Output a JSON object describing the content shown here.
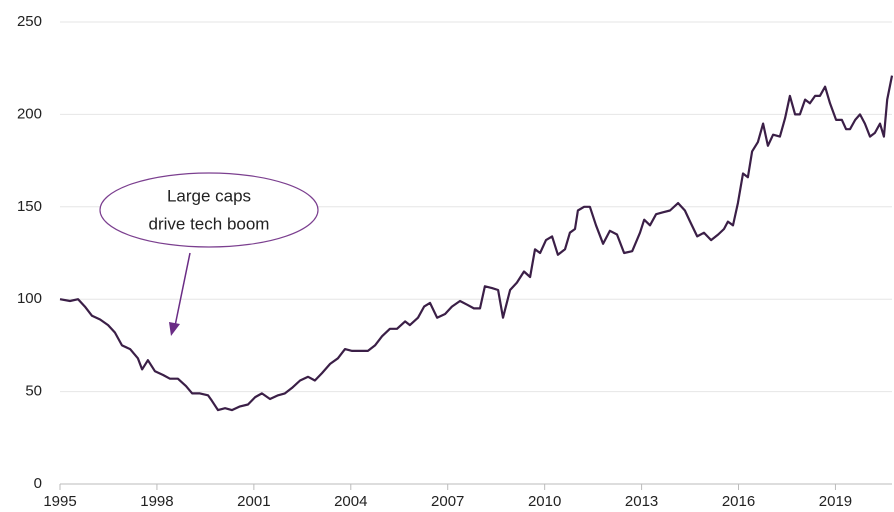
{
  "chart_data": {
    "type": "line",
    "x": [
      1995.0,
      1995.31,
      1995.56,
      1995.77,
      1995.99,
      1996.24,
      1996.49,
      1996.7,
      1996.92,
      1997.17,
      1997.41,
      1997.54,
      1997.72,
      1997.94,
      1998.19,
      1998.4,
      1998.65,
      1998.9,
      1999.09,
      1999.33,
      1999.58,
      1999.7,
      1999.89,
      2000.11,
      2000.32,
      2000.57,
      2000.82,
      2001.04,
      2001.25,
      2001.5,
      2001.75,
      2001.96,
      2002.18,
      2002.43,
      2002.68,
      2002.89,
      2003.11,
      2003.36,
      2003.6,
      2003.82,
      2004.04,
      2004.29,
      2004.53,
      2004.75,
      2004.97,
      2005.21,
      2005.43,
      2005.68,
      2005.83,
      2006.08,
      2006.27,
      2006.45,
      2006.67,
      2006.92,
      2007.13,
      2007.38,
      2007.6,
      2007.81,
      2008.0,
      2008.15,
      2008.37,
      2008.56,
      2008.71,
      2008.93,
      2009.14,
      2009.36,
      2009.55,
      2009.7,
      2009.86,
      2010.04,
      2010.23,
      2010.41,
      2010.63,
      2010.78,
      2010.94,
      2011.03,
      2011.22,
      2011.4,
      2011.59,
      2011.81,
      2012.02,
      2012.24,
      2012.46,
      2012.71,
      2012.95,
      2013.08,
      2013.26,
      2013.45,
      2013.66,
      2013.88,
      2014.13,
      2014.34,
      2014.5,
      2014.72,
      2014.93,
      2015.15,
      2015.37,
      2015.55,
      2015.67,
      2015.83,
      2015.98,
      2016.14,
      2016.29,
      2016.42,
      2016.6,
      2016.76,
      2016.91,
      2017.07,
      2017.28,
      2017.44,
      2017.59,
      2017.75,
      2017.9,
      2018.06,
      2018.21,
      2018.37,
      2018.52,
      2018.68,
      2018.83,
      2019.02,
      2019.2,
      2019.33,
      2019.45,
      2019.61,
      2019.76,
      2019.91,
      2020.07,
      2020.22,
      2020.38,
      2020.5,
      2020.6,
      2020.75
    ],
    "series": [
      {
        "color": "#3b1f47",
        "values": [
          100,
          99,
          100,
          96,
          91,
          89,
          86,
          82,
          75,
          73,
          68,
          62,
          67,
          61,
          59,
          57,
          57,
          53,
          49,
          49,
          48,
          45,
          40,
          41,
          40,
          42,
          43,
          47,
          49,
          46,
          48,
          49,
          52,
          56,
          58,
          56,
          60,
          65,
          68,
          73,
          72,
          72,
          72,
          75,
          80,
          84,
          84,
          88,
          86,
          90,
          96,
          98,
          90,
          92,
          96,
          99,
          97,
          95,
          95,
          107,
          106,
          105,
          90,
          105,
          109,
          115,
          112,
          127,
          125,
          132,
          134,
          124,
          127,
          136,
          138,
          148,
          150,
          150,
          140,
          130,
          137,
          135,
          125,
          126,
          136,
          143,
          140,
          146,
          147,
          148,
          152,
          148,
          142,
          134,
          136,
          132,
          135,
          138,
          142,
          140,
          152,
          168,
          166,
          180,
          185,
          195,
          183,
          189,
          188,
          198,
          210,
          200,
          200,
          208,
          206,
          210,
          210,
          215,
          206,
          197,
          197,
          192,
          192,
          197,
          200,
          195,
          188,
          190,
          195,
          188,
          208,
          221
        ]
      }
    ],
    "xlim": [
      1995,
      2020.75
    ],
    "xticks": [
      1995,
      1998,
      2001,
      2004,
      2007,
      2010,
      2013,
      2016,
      2019
    ],
    "ylim": [
      0,
      250
    ],
    "yticks": [
      0,
      50,
      100,
      150,
      200,
      250
    ],
    "grid": true,
    "annotation": [
      "Large caps",
      "drive tech boom"
    ]
  }
}
